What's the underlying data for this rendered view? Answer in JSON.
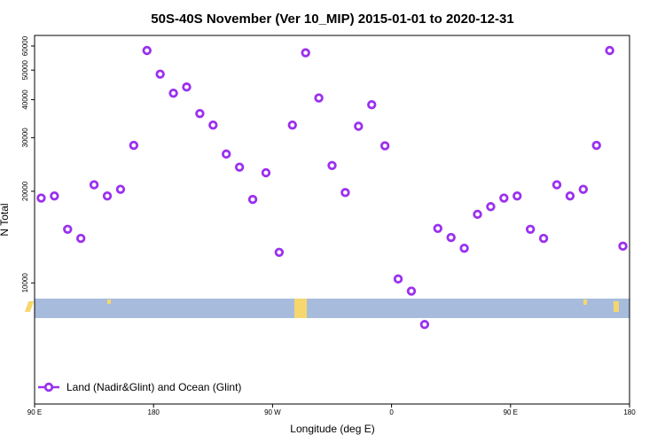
{
  "colors": {
    "series": "#9b30f0",
    "land_band": "#a7bcdc",
    "land_mass": "#f5d76e",
    "axis": "#000000",
    "background": "#ffffff"
  },
  "chart_data": {
    "type": "scatter",
    "title": "50S-40S November (Ver 10_MIP)   2015-01-01 to 2020-12-31",
    "xlabel": "Longitude (deg E)",
    "ylabel": "N Total",
    "x_scale": "longitude 90E eastward through 180 to 180E",
    "y_scale": "log",
    "xlim": [
      90,
      540
    ],
    "ylim": [
      4000,
      65000
    ],
    "x_ticks": [
      {
        "value": 90,
        "label": "90 E"
      },
      {
        "value": 180,
        "label": "180"
      },
      {
        "value": 270,
        "label": "90 W"
      },
      {
        "value": 360,
        "label": "0"
      },
      {
        "value": 450,
        "label": "90 E"
      },
      {
        "value": 540,
        "label": "180"
      }
    ],
    "y_ticks": [
      {
        "value": 10000,
        "label": "10000"
      },
      {
        "value": 20000,
        "label": "20000"
      },
      {
        "value": 30000,
        "label": "30000"
      },
      {
        "value": 40000,
        "label": "40000"
      },
      {
        "value": 50000,
        "label": "50000"
      },
      {
        "value": 60000,
        "label": "60000"
      }
    ],
    "grid": false,
    "legend_position": "bottom-left",
    "series": [
      {
        "name": "Land (Nadir&Glint) and Ocean (Glint)",
        "x": [
          95,
          105,
          115,
          125,
          135,
          145,
          155,
          165,
          175,
          185,
          195,
          205,
          215,
          225,
          235,
          245,
          255,
          265,
          275,
          285,
          295,
          305,
          315,
          325,
          335,
          345,
          355,
          365,
          375,
          385,
          395,
          405,
          415,
          425,
          435,
          445,
          455,
          465,
          475,
          485,
          495,
          505,
          515,
          525,
          535
        ],
        "y": [
          19000,
          19300,
          15000,
          14000,
          21000,
          19300,
          20300,
          28300,
          58000,
          48500,
          42000,
          44000,
          36000,
          33000,
          26500,
          24000,
          18800,
          23000,
          12600,
          33000,
          57000,
          40500,
          24300,
          19800,
          32700,
          38500,
          28200,
          10300,
          9400,
          7300,
          15100,
          14100,
          13000,
          16800,
          17800,
          19000,
          19300,
          15000,
          14000,
          21000,
          19300,
          20300,
          28300,
          58000,
          13200
        ]
      }
    ]
  }
}
